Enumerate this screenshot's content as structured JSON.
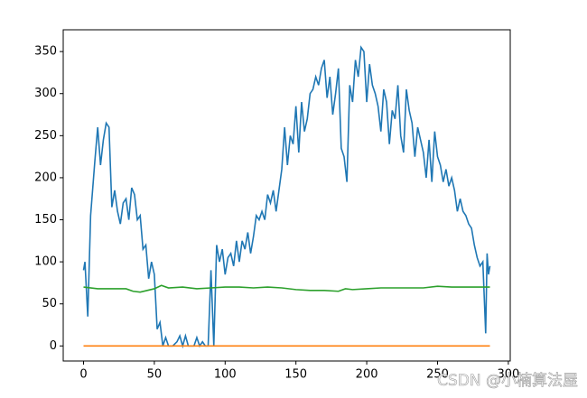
{
  "chart_data": {
    "type": "line",
    "xlim": [
      -14.35,
      301.35
    ],
    "ylim": [
      -17.9,
      375.9
    ],
    "xticks": [
      0,
      50,
      100,
      150,
      200,
      250,
      300
    ],
    "yticks": [
      0,
      50,
      100,
      150,
      200,
      250,
      300,
      350
    ],
    "series": [
      {
        "color": "#1f77b4",
        "x": [
          0,
          1,
          3,
          5,
          8,
          10,
          12,
          14,
          16,
          18,
          20,
          22,
          24,
          26,
          28,
          30,
          32,
          34,
          36,
          38,
          40,
          42,
          44,
          46,
          48,
          50,
          52,
          54,
          56,
          58,
          60,
          63,
          66,
          68,
          70,
          72,
          74,
          76,
          78,
          80,
          82,
          84,
          86,
          88,
          90,
          92,
          94,
          96,
          98,
          100,
          102,
          104,
          106,
          108,
          110,
          112,
          114,
          116,
          118,
          120,
          122,
          124,
          126,
          128,
          130,
          132,
          134,
          136,
          138,
          140,
          142,
          144,
          146,
          148,
          150,
          152,
          154,
          156,
          158,
          160,
          162,
          164,
          166,
          168,
          170,
          172,
          174,
          176,
          178,
          180,
          182,
          184,
          186,
          188,
          190,
          192,
          194,
          196,
          198,
          200,
          202,
          204,
          206,
          208,
          210,
          212,
          214,
          216,
          218,
          220,
          222,
          224,
          226,
          228,
          230,
          232,
          234,
          236,
          238,
          240,
          242,
          244,
          246,
          248,
          250,
          252,
          254,
          256,
          258,
          260,
          262,
          264,
          266,
          268,
          270,
          272,
          274,
          276,
          278,
          280,
          282,
          284,
          285,
          286,
          287
        ],
        "values": [
          90,
          100,
          35,
          155,
          220,
          260,
          215,
          245,
          265,
          260,
          165,
          185,
          160,
          145,
          170,
          175,
          150,
          188,
          180,
          150,
          155,
          115,
          120,
          80,
          100,
          85,
          20,
          28,
          0,
          10,
          0,
          0,
          5,
          12,
          0,
          12,
          0,
          0,
          0,
          10,
          0,
          5,
          0,
          0,
          90,
          0,
          120,
          100,
          115,
          85,
          105,
          110,
          95,
          125,
          100,
          125,
          115,
          135,
          110,
          130,
          155,
          150,
          160,
          150,
          180,
          170,
          185,
          160,
          185,
          210,
          260,
          215,
          250,
          240,
          285,
          230,
          290,
          255,
          270,
          300,
          305,
          320,
          310,
          330,
          340,
          295,
          320,
          275,
          300,
          330,
          235,
          225,
          195,
          310,
          290,
          340,
          320,
          355,
          350,
          290,
          335,
          310,
          300,
          285,
          255,
          305,
          290,
          240,
          280,
          270,
          310,
          250,
          230,
          305,
          280,
          265,
          225,
          260,
          245,
          230,
          200,
          245,
          195,
          255,
          225,
          215,
          195,
          210,
          190,
          200,
          185,
          160,
          175,
          160,
          155,
          145,
          140,
          120,
          105,
          95,
          100,
          15,
          110,
          85,
          95
        ]
      },
      {
        "color": "#ff7f0e",
        "x": [
          0,
          287
        ],
        "values": [
          0,
          0
        ]
      },
      {
        "color": "#2ca02c",
        "x": [
          0,
          10,
          20,
          30,
          35,
          40,
          45,
          50,
          55,
          60,
          70,
          80,
          90,
          100,
          110,
          120,
          130,
          140,
          150,
          160,
          170,
          180,
          185,
          190,
          200,
          210,
          220,
          230,
          240,
          250,
          260,
          270,
          280,
          287
        ],
        "values": [
          70,
          68,
          68,
          68,
          65,
          64,
          66,
          68,
          72,
          69,
          70,
          68,
          69,
          70,
          70,
          69,
          70,
          69,
          67,
          66,
          66,
          65,
          68,
          67,
          68,
          69,
          69,
          69,
          69,
          71,
          70,
          70,
          70,
          70
        ]
      }
    ],
    "watermark": "CSDN @小楠算法屋"
  }
}
